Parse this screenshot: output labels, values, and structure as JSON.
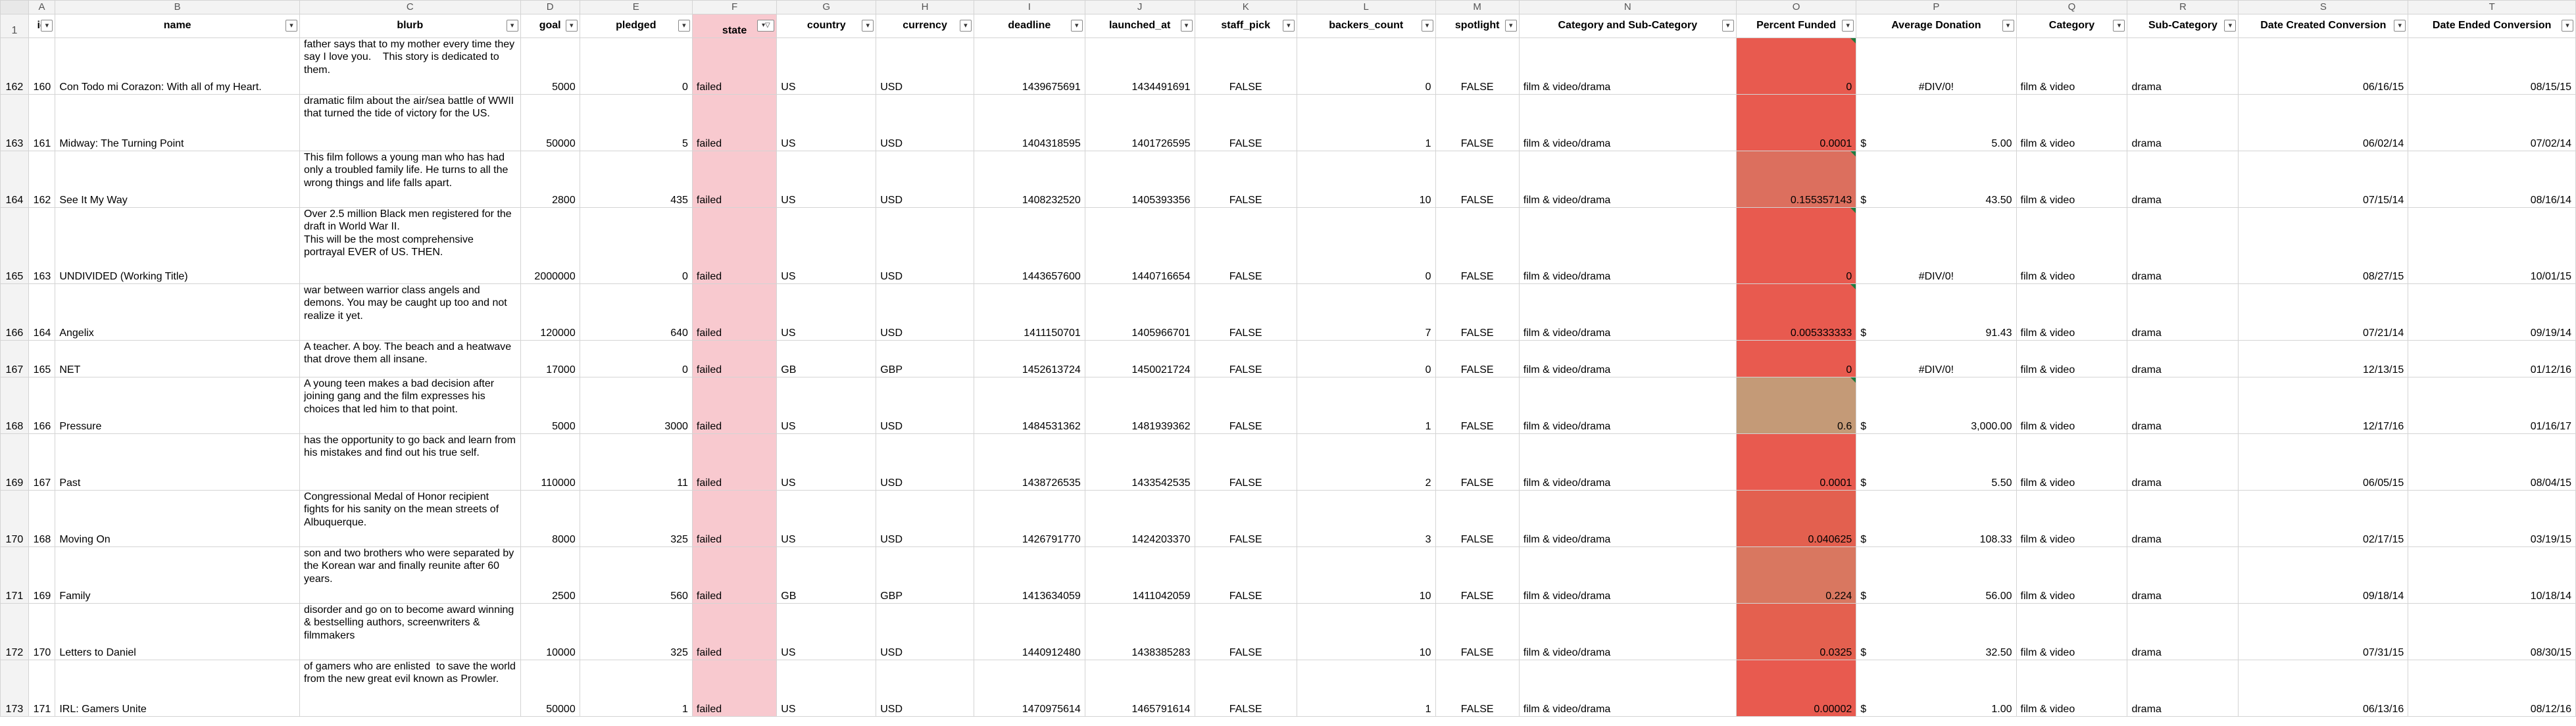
{
  "col_letters": [
    "A",
    "B",
    "C",
    "D",
    "E",
    "F",
    "G",
    "H",
    "I",
    "J",
    "K",
    "L",
    "M",
    "N",
    "O",
    "P",
    "Q",
    "R",
    "S",
    "T"
  ],
  "header": {
    "row_number": "1",
    "fields": [
      "id",
      "name",
      "blurb",
      "goal",
      "pledged",
      "state",
      "country",
      "currency",
      "deadline",
      "launched_at",
      "staff_pick",
      "backers_count",
      "spotlight",
      "Category and Sub-Category",
      "Percent Funded",
      "Average Donation",
      "Category",
      "Sub-Category",
      "Date Created Conversion",
      "Date Ended Conversion"
    ],
    "filter_icon": "dropdown-arrow",
    "active_filter_icon": "filter-funnel"
  },
  "colors": {
    "state_fill": "#f8c9cf",
    "state_text": "#c42b2b",
    "row_number_text": "#1f4fbf"
  },
  "rows": [
    {
      "rownum": "162",
      "id": "160",
      "name": "Con Todo mi Corazon: With all of my Heart.",
      "blurb": "father says that to my mother every time they say I love you.    This story is dedicated to them.",
      "goal": "5000",
      "pledged": "0",
      "state": "failed",
      "country": "US",
      "currency": "USD",
      "deadline": "1439675691",
      "launched_at": "1434491691",
      "staff_pick": "FALSE",
      "backers_count": "0",
      "spotlight": "FALSE",
      "cat_sub": "film & video/drama",
      "percent_funded": "0",
      "pct_color": "#e85a4f",
      "avg_cur": "",
      "avg": "#DIV/0!",
      "category": "film & video",
      "sub_category": "drama",
      "date_created": "06/16/15",
      "date_ended": "08/15/15"
    },
    {
      "rownum": "163",
      "id": "161",
      "name": "Midway: The Turning Point",
      "blurb": "dramatic film about the air/sea battle of WWII that turned the tide of victory for the US.",
      "goal": "50000",
      "pledged": "5",
      "state": "failed",
      "country": "US",
      "currency": "USD",
      "deadline": "1404318595",
      "launched_at": "1401726595",
      "staff_pick": "FALSE",
      "backers_count": "1",
      "spotlight": "FALSE",
      "cat_sub": "film & video/drama",
      "percent_funded": "0.0001",
      "pct_color": "#e85a4f",
      "avg_cur": "$",
      "avg": "5.00",
      "category": "film & video",
      "sub_category": "drama",
      "date_created": "06/02/14",
      "date_ended": "07/02/14"
    },
    {
      "rownum": "164",
      "id": "162",
      "name": "See It My Way",
      "blurb": "This film follows a young man who has had only a troubled family life. He turns to all the wrong things and life falls apart.",
      "goal": "2800",
      "pledged": "435",
      "state": "failed",
      "country": "US",
      "currency": "USD",
      "deadline": "1408232520",
      "launched_at": "1405393356",
      "staff_pick": "FALSE",
      "backers_count": "10",
      "spotlight": "FALSE",
      "cat_sub": "film & video/drama",
      "percent_funded": "0.155357143",
      "pct_color": "#dc6f5e",
      "avg_cur": "$",
      "avg": "43.50",
      "category": "film & video",
      "sub_category": "drama",
      "date_created": "07/15/14",
      "date_ended": "08/16/14"
    },
    {
      "rownum": "165",
      "id": "163",
      "name": "UNDIVIDED (Working Title)",
      "blurb": "Over 2.5 million Black men registered for the draft in World War II.\nThis will be the most comprehensive portrayal EVER of US. THEN.",
      "goal": "2000000",
      "pledged": "0",
      "state": "failed",
      "country": "US",
      "currency": "USD",
      "deadline": "1443657600",
      "launched_at": "1440716654",
      "staff_pick": "FALSE",
      "backers_count": "0",
      "spotlight": "FALSE",
      "cat_sub": "film & video/drama",
      "percent_funded": "0",
      "pct_color": "#e85a4f",
      "avg_cur": "",
      "avg": "#DIV/0!",
      "category": "film & video",
      "sub_category": "drama",
      "date_created": "08/27/15",
      "date_ended": "10/01/15"
    },
    {
      "rownum": "166",
      "id": "164",
      "name": "Angelix",
      "blurb": "war between warrior class angels and demons. You may be caught up too and not realize it yet.",
      "goal": "120000",
      "pledged": "640",
      "state": "failed",
      "country": "US",
      "currency": "USD",
      "deadline": "1411150701",
      "launched_at": "1405966701",
      "staff_pick": "FALSE",
      "backers_count": "7",
      "spotlight": "FALSE",
      "cat_sub": "film & video/drama",
      "percent_funded": "0.005333333",
      "pct_color": "#e85a4f",
      "avg_cur": "$",
      "avg": "91.43",
      "category": "film & video",
      "sub_category": "drama",
      "date_created": "07/21/14",
      "date_ended": "09/19/14"
    },
    {
      "rownum": "167",
      "id": "165",
      "name": "NET",
      "blurb": "A teacher. A boy. The beach and a heatwave that drove them all insane.",
      "goal": "17000",
      "pledged": "0",
      "state": "failed",
      "country": "GB",
      "currency": "GBP",
      "deadline": "1452613724",
      "launched_at": "1450021724",
      "staff_pick": "FALSE",
      "backers_count": "0",
      "spotlight": "FALSE",
      "cat_sub": "film & video/drama",
      "percent_funded": "0",
      "pct_color": "#e85a4f",
      "avg_cur": "",
      "avg": "#DIV/0!",
      "category": "film & video",
      "sub_category": "drama",
      "date_created": "12/13/15",
      "date_ended": "01/12/16"
    },
    {
      "rownum": "168",
      "id": "166",
      "name": "Pressure",
      "blurb": "A young teen makes a bad decision after joining gang and the film expresses his choices that led him to that point.",
      "goal": "5000",
      "pledged": "3000",
      "state": "failed",
      "country": "US",
      "currency": "USD",
      "deadline": "1484531362",
      "launched_at": "1481939362",
      "staff_pick": "FALSE",
      "backers_count": "1",
      "spotlight": "FALSE",
      "cat_sub": "film & video/drama",
      "percent_funded": "0.6",
      "pct_color": "#c49a77",
      "avg_cur": "$",
      "avg": "3,000.00",
      "category": "film & video",
      "sub_category": "drama",
      "date_created": "12/17/16",
      "date_ended": "01/16/17"
    },
    {
      "rownum": "169",
      "id": "167",
      "name": "Past",
      "blurb": "has the opportunity to go back and learn from his mistakes and find out his true self.",
      "goal": "110000",
      "pledged": "11",
      "state": "failed",
      "country": "US",
      "currency": "USD",
      "deadline": "1438726535",
      "launched_at": "1433542535",
      "staff_pick": "FALSE",
      "backers_count": "2",
      "spotlight": "FALSE",
      "cat_sub": "film & video/drama",
      "percent_funded": "0.0001",
      "pct_color": "#e85a4f",
      "avg_cur": "$",
      "avg": "5.50",
      "category": "film & video",
      "sub_category": "drama",
      "date_created": "06/05/15",
      "date_ended": "08/04/15"
    },
    {
      "rownum": "170",
      "id": "168",
      "name": "Moving On",
      "blurb": "Congressional Medal of Honor recipient fights for his sanity on the mean streets of Albuquerque.",
      "goal": "8000",
      "pledged": "325",
      "state": "failed",
      "country": "US",
      "currency": "USD",
      "deadline": "1426791770",
      "launched_at": "1424203370",
      "staff_pick": "FALSE",
      "backers_count": "3",
      "spotlight": "FALSE",
      "cat_sub": "film & video/drama",
      "percent_funded": "0.040625",
      "pct_color": "#e3604f",
      "avg_cur": "$",
      "avg": "108.33",
      "category": "film & video",
      "sub_category": "drama",
      "date_created": "02/17/15",
      "date_ended": "03/19/15"
    },
    {
      "rownum": "171",
      "id": "169",
      "name": "Family",
      "blurb": "son and two brothers who were separated by the Korean war and finally reunite after 60 years.",
      "goal": "2500",
      "pledged": "560",
      "state": "failed",
      "country": "GB",
      "currency": "GBP",
      "deadline": "1413634059",
      "launched_at": "1411042059",
      "staff_pick": "FALSE",
      "backers_count": "10",
      "spotlight": "FALSE",
      "cat_sub": "film & video/drama",
      "percent_funded": "0.224",
      "pct_color": "#d97760",
      "avg_cur": "$",
      "avg": "56.00",
      "category": "film & video",
      "sub_category": "drama",
      "date_created": "09/18/14",
      "date_ended": "10/18/14"
    },
    {
      "rownum": "172",
      "id": "170",
      "name": "Letters to Daniel",
      "blurb": "disorder and go on to become award winning & bestselling authors, screenwriters & filmmakers",
      "goal": "10000",
      "pledged": "325",
      "state": "failed",
      "country": "US",
      "currency": "USD",
      "deadline": "1440912480",
      "launched_at": "1438385283",
      "staff_pick": "FALSE",
      "backers_count": "10",
      "spotlight": "FALSE",
      "cat_sub": "film & video/drama",
      "percent_funded": "0.0325",
      "pct_color": "#e4604f",
      "avg_cur": "$",
      "avg": "32.50",
      "category": "film & video",
      "sub_category": "drama",
      "date_created": "07/31/15",
      "date_ended": "08/30/15"
    },
    {
      "rownum": "173",
      "id": "171",
      "name": "IRL: Gamers Unite",
      "blurb": "of gamers who are enlisted  to save the world from the new great evil known as Prowler.",
      "goal": "50000",
      "pledged": "1",
      "state": "failed",
      "country": "US",
      "currency": "USD",
      "deadline": "1470975614",
      "launched_at": "1465791614",
      "staff_pick": "FALSE",
      "backers_count": "1",
      "spotlight": "FALSE",
      "cat_sub": "film & video/drama",
      "percent_funded": "0.00002",
      "pct_color": "#e85a4f",
      "avg_cur": "$",
      "avg": "1.00",
      "category": "film & video",
      "sub_category": "drama",
      "date_created": "06/13/16",
      "date_ended": "08/12/16"
    }
  ]
}
